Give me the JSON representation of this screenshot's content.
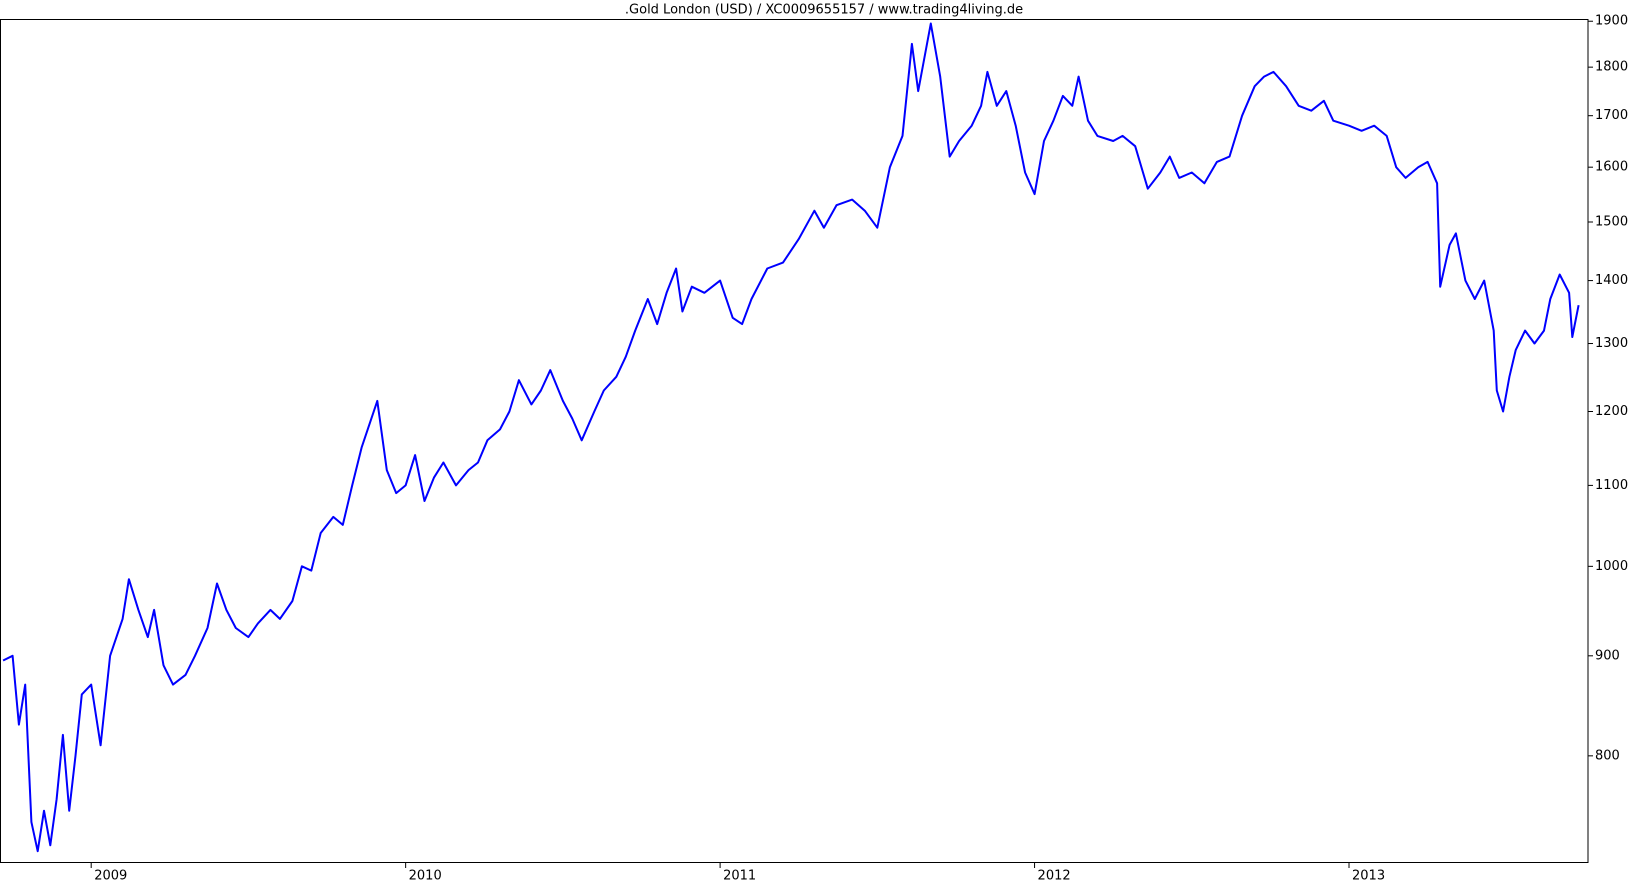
{
  "chart_data": {
    "type": "line",
    "title": ".Gold London (USD) / XC0009655157 / www.trading4living.de",
    "x": [
      2008.72,
      2008.75,
      2008.77,
      2008.79,
      2008.81,
      2008.83,
      2008.85,
      2008.87,
      2008.89,
      2008.91,
      2008.93,
      2008.95,
      2008.97,
      2009.0,
      2009.03,
      2009.06,
      2009.1,
      2009.12,
      2009.15,
      2009.18,
      2009.2,
      2009.23,
      2009.26,
      2009.3,
      2009.33,
      2009.37,
      2009.4,
      2009.43,
      2009.46,
      2009.5,
      2009.53,
      2009.57,
      2009.6,
      2009.64,
      2009.67,
      2009.7,
      2009.73,
      2009.77,
      2009.8,
      2009.83,
      2009.86,
      2009.91,
      2009.94,
      2009.97,
      2010.0,
      2010.03,
      2010.06,
      2010.09,
      2010.12,
      2010.16,
      2010.2,
      2010.23,
      2010.26,
      2010.3,
      2010.33,
      2010.36,
      2010.4,
      2010.43,
      2010.46,
      2010.5,
      2010.53,
      2010.56,
      2010.6,
      2010.63,
      2010.67,
      2010.7,
      2010.73,
      2010.77,
      2010.8,
      2010.83,
      2010.86,
      2010.88,
      2010.91,
      2010.95,
      2011.0,
      2011.04,
      2011.07,
      2011.1,
      2011.15,
      2011.2,
      2011.25,
      2011.3,
      2011.33,
      2011.37,
      2011.42,
      2011.46,
      2011.5,
      2011.54,
      2011.58,
      2011.61,
      2011.63,
      2011.67,
      2011.7,
      2011.73,
      2011.76,
      2011.8,
      2011.83,
      2011.85,
      2011.88,
      2011.91,
      2011.94,
      2011.97,
      2012.0,
      2012.03,
      2012.06,
      2012.09,
      2012.12,
      2012.14,
      2012.17,
      2012.2,
      2012.25,
      2012.28,
      2012.32,
      2012.36,
      2012.4,
      2012.43,
      2012.46,
      2012.5,
      2012.54,
      2012.58,
      2012.62,
      2012.66,
      2012.7,
      2012.73,
      2012.76,
      2012.8,
      2012.84,
      2012.88,
      2012.92,
      2012.95,
      2013.0,
      2013.04,
      2013.08,
      2013.12,
      2013.15,
      2013.18,
      2013.22,
      2013.25,
      2013.28,
      2013.29,
      2013.32,
      2013.34,
      2013.37,
      2013.4,
      2013.43,
      2013.46,
      2013.47,
      2013.49,
      2013.51,
      2013.53,
      2013.56,
      2013.59,
      2013.62,
      2013.64,
      2013.67,
      2013.7,
      2013.71,
      2013.73
    ],
    "values": [
      895,
      900,
      830,
      870,
      740,
      715,
      750,
      720,
      760,
      820,
      750,
      800,
      860,
      870,
      810,
      900,
      940,
      985,
      950,
      920,
      950,
      890,
      870,
      880,
      900,
      930,
      980,
      950,
      930,
      920,
      935,
      950,
      940,
      960,
      1000,
      995,
      1040,
      1060,
      1050,
      1100,
      1150,
      1215,
      1120,
      1090,
      1100,
      1140,
      1080,
      1110,
      1130,
      1100,
      1120,
      1130,
      1160,
      1175,
      1200,
      1245,
      1210,
      1230,
      1260,
      1215,
      1190,
      1160,
      1200,
      1230,
      1250,
      1280,
      1320,
      1370,
      1330,
      1380,
      1420,
      1350,
      1390,
      1380,
      1400,
      1340,
      1330,
      1370,
      1420,
      1430,
      1470,
      1520,
      1490,
      1530,
      1540,
      1520,
      1490,
      1600,
      1660,
      1850,
      1750,
      1895,
      1780,
      1620,
      1650,
      1680,
      1720,
      1790,
      1720,
      1750,
      1680,
      1590,
      1550,
      1650,
      1690,
      1740,
      1720,
      1780,
      1690,
      1660,
      1650,
      1660,
      1640,
      1560,
      1590,
      1620,
      1580,
      1590,
      1570,
      1610,
      1620,
      1700,
      1760,
      1780,
      1790,
      1760,
      1720,
      1710,
      1730,
      1690,
      1680,
      1670,
      1680,
      1660,
      1600,
      1580,
      1600,
      1610,
      1570,
      1390,
      1460,
      1480,
      1400,
      1370,
      1400,
      1320,
      1230,
      1200,
      1250,
      1290,
      1320,
      1300,
      1320,
      1370,
      1410,
      1380,
      1310,
      1360
    ],
    "color": "#0000ff",
    "xlim": [
      2008.71,
      2013.76
    ],
    "xticks": [
      2009,
      2010,
      2011,
      2012,
      2013
    ],
    "ylim": [
      706,
      1905
    ],
    "yticks": [
      800,
      900,
      1000,
      1100,
      1200,
      1300,
      1400,
      1500,
      1600,
      1700,
      1800,
      1900
    ],
    "log_scale": true
  }
}
